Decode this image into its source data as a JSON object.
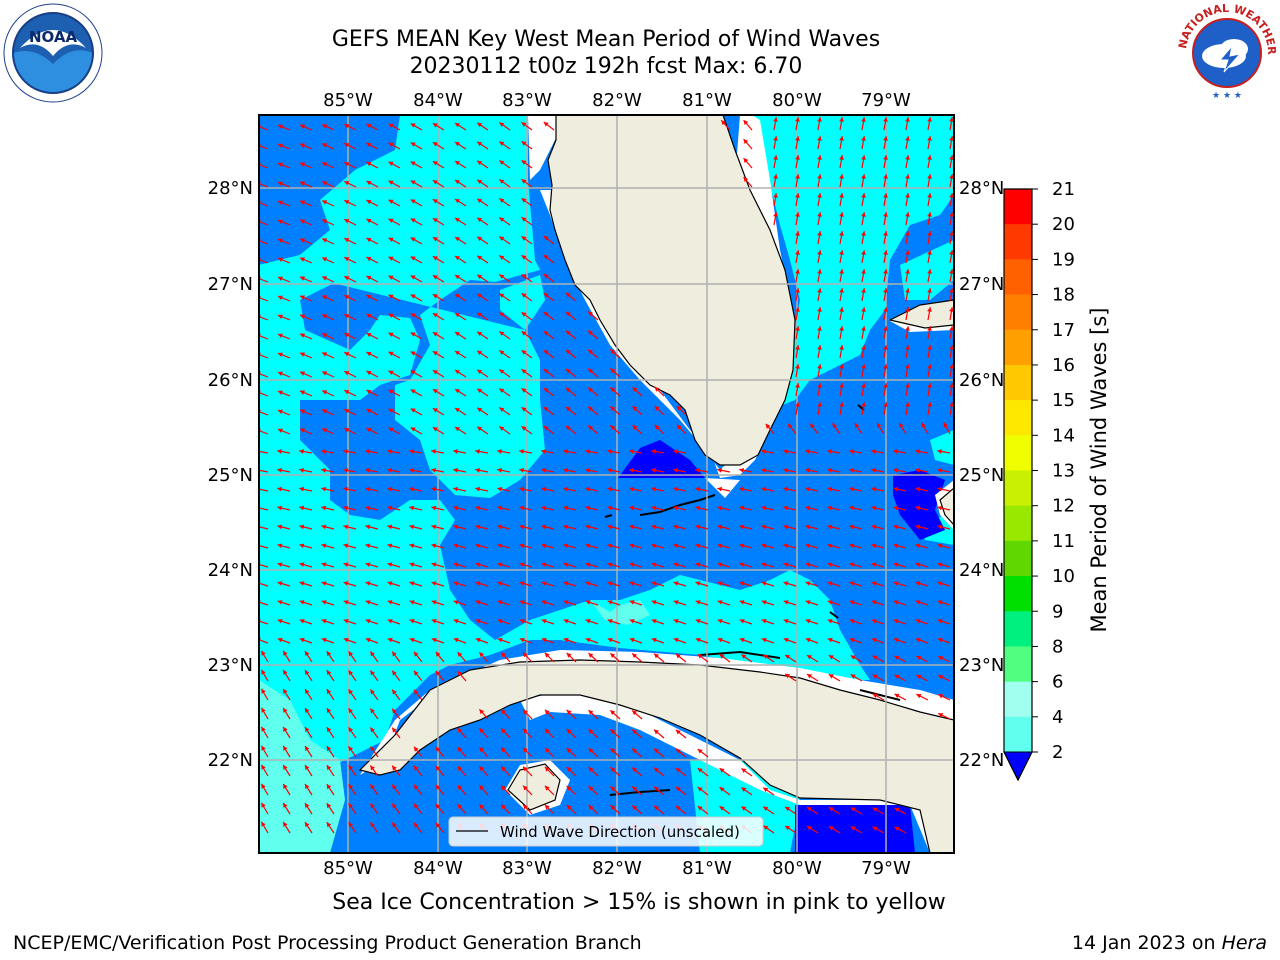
{
  "title": {
    "line1": "GEFS MEAN Key West Mean Period of Wind Waves",
    "line2": "20230112 t00z 192h fcst   Max: 6.70"
  },
  "logos": {
    "left": "noaa-logo",
    "left_text": "NOAA",
    "right": "national-weather-service-logo",
    "right_text": "NATIONAL WEATHER SERVICE"
  },
  "map": {
    "lon_labels": [
      "85°W",
      "84°W",
      "83°W",
      "82°W",
      "81°W",
      "80°W",
      "79°W"
    ],
    "lat_labels": [
      "28°N",
      "27°N",
      "26°N",
      "25°N",
      "24°N",
      "23°N",
      "22°N"
    ],
    "legend_label": "Wind Wave Direction (unscaled)"
  },
  "colorbar": {
    "label": "Mean Period of Wind Waves [s]",
    "ticks": [
      "21",
      "20",
      "19",
      "18",
      "17",
      "16",
      "15",
      "14",
      "13",
      "12",
      "11",
      "10",
      "9",
      "8",
      "6",
      "4",
      "2"
    ],
    "colors": [
      "#ff0000",
      "#ff3a00",
      "#ff6000",
      "#ff8000",
      "#ffa000",
      "#ffc800",
      "#ffe800",
      "#f0ff00",
      "#c8f000",
      "#98e800",
      "#60d800",
      "#00e000",
      "#00f080",
      "#50ff80",
      "#a0ffee",
      "#60ffee",
      "#00ffff",
      "#0080ff"
    ],
    "under_color": "#0000ff"
  },
  "field_colors": {
    "band_2_4": "#0080ff",
    "band_4_6": "#00ffff",
    "band_6_8": "#60ffee",
    "below_2": "#0000ff",
    "land": "#efedde",
    "arrow": "#ff0000"
  },
  "ice_note": "Sea Ice Concentration > 15% is shown in pink to yellow",
  "footer": {
    "left": "NCEP/EMC/Verification Post Processing Product Generation Branch",
    "right_date": "14 Jan 2023 on",
    "right_host": "Hera"
  }
}
